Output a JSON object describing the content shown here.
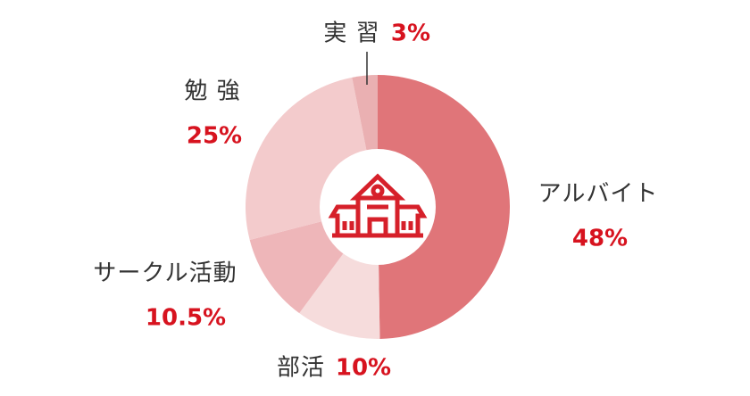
{
  "chart_data": {
    "type": "pie",
    "categories": [
      "アルバイト",
      "部活",
      "サークル活動",
      "勉 強",
      "実 習"
    ],
    "values": [
      48,
      10,
      10.5,
      25,
      3
    ],
    "value_labels": [
      "48%",
      "10%",
      "10.5%",
      "25%",
      "3%"
    ],
    "colors": [
      "#e07579",
      "#f6dcdc",
      "#eeb6b9",
      "#f3cbcc",
      "#eab0b2"
    ]
  }
}
